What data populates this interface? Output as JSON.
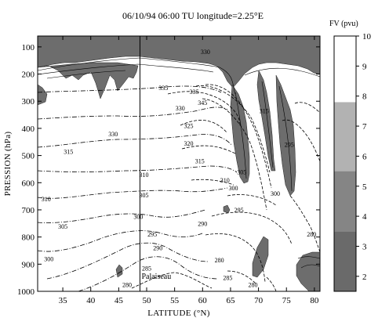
{
  "chart_data": {
    "type": "contour",
    "title": "06/10/94 06:00 TU longitude=2.25°E",
    "xlabel": "LATITUDE (°N)",
    "ylabel": "PRESSION (hPa)",
    "x_ticks": [
      35,
      40,
      45,
      50,
      55,
      60,
      65,
      70,
      75,
      80
    ],
    "y_ticks": [
      100,
      200,
      300,
      400,
      500,
      600,
      700,
      800,
      900,
      1000
    ],
    "xlim": [
      30.5,
      81
    ],
    "ylim": [
      1000,
      60
    ],
    "vertical_marker": {
      "latitude": 48.8,
      "label": "Palaiseau"
    },
    "isentrope_labels": [
      {
        "value": "330",
        "lat": 44,
        "p": 420
      },
      {
        "value": "315",
        "lat": 36,
        "p": 485
      },
      {
        "value": "310",
        "lat": 49.5,
        "p": 570
      },
      {
        "value": "310",
        "lat": 32,
        "p": 660
      },
      {
        "value": "305",
        "lat": 35,
        "p": 760
      },
      {
        "value": "305",
        "lat": 49.5,
        "p": 645
      },
      {
        "value": "300",
        "lat": 32.5,
        "p": 880
      },
      {
        "value": "300",
        "lat": 48.5,
        "p": 725
      },
      {
        "value": "295",
        "lat": 51,
        "p": 790
      },
      {
        "value": "290",
        "lat": 52,
        "p": 840
      },
      {
        "value": "285",
        "lat": 50,
        "p": 915
      },
      {
        "value": "280",
        "lat": 46.5,
        "p": 975
      },
      {
        "value": "295",
        "lat": 66.5,
        "p": 700
      },
      {
        "value": "290",
        "lat": 60,
        "p": 750
      },
      {
        "value": "300",
        "lat": 65.5,
        "p": 620
      },
      {
        "value": "280",
        "lat": 63,
        "p": 885
      },
      {
        "value": "285",
        "lat": 64.5,
        "p": 950
      },
      {
        "value": "280",
        "lat": 69,
        "p": 975
      },
      {
        "value": "325",
        "lat": 57.5,
        "p": 390
      },
      {
        "value": "320",
        "lat": 57.5,
        "p": 455
      },
      {
        "value": "315",
        "lat": 59.5,
        "p": 520
      },
      {
        "value": "310",
        "lat": 64,
        "p": 590
      },
      {
        "value": "330",
        "lat": 56,
        "p": 325
      },
      {
        "value": "335",
        "lat": 53,
        "p": 250
      },
      {
        "value": "335",
        "lat": 58.5,
        "p": 265
      },
      {
        "value": "345",
        "lat": 60,
        "p": 305
      },
      {
        "value": "330",
        "lat": 60.5,
        "p": 118
      },
      {
        "value": "305",
        "lat": 67,
        "p": 560
      },
      {
        "value": "300",
        "lat": 73,
        "p": 640
      },
      {
        "value": "295",
        "lat": 75.5,
        "p": 460
      },
      {
        "value": "280",
        "lat": 79.5,
        "p": 790
      },
      {
        "value": "315",
        "lat": 71,
        "p": 335
      }
    ],
    "colorbar": {
      "label": "FV (pvu)",
      "ticks": [
        2,
        3,
        4,
        5,
        6,
        7,
        8,
        9,
        10
      ],
      "bins": [
        {
          "from": 1.5,
          "to": 3.5,
          "color": "#6a6a6a"
        },
        {
          "from": 3.5,
          "to": 5.5,
          "color": "#858585"
        },
        {
          "from": 5.5,
          "to": 7.8,
          "color": "#b2b2b2"
        },
        {
          "from": 7.8,
          "to": 10,
          "color": "#ffffff"
        }
      ]
    },
    "pv_shade_color": "#6d6d6d"
  }
}
